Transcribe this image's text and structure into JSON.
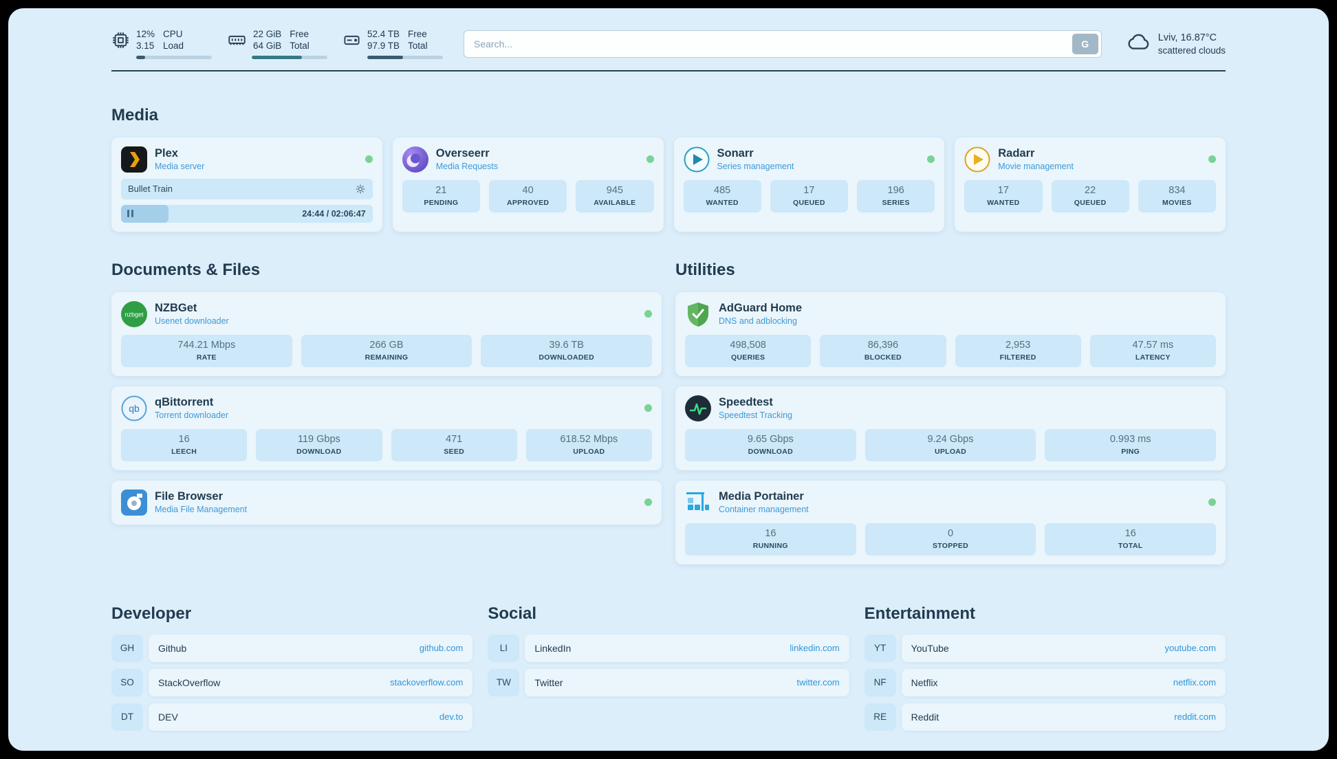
{
  "colors": {
    "status_online": "#79d394",
    "accent_link": "#2f96d8",
    "page_bg": "#dceefa",
    "card_bg": "#eaf5fc",
    "stat_bg": "#cde8f8"
  },
  "topbar": {
    "cpu": {
      "top_value": "12%",
      "bottom_value": "3.15",
      "top_label": "CPU",
      "bottom_label": "Load",
      "progress_pct": 12
    },
    "ram": {
      "top_value": "22 GiB",
      "bottom_value": "64 GiB",
      "top_label": "Free",
      "bottom_label": "Total",
      "progress_pct": 66
    },
    "disk": {
      "top_value": "52.4 TB",
      "bottom_value": "97.9 TB",
      "top_label": "Free",
      "bottom_label": "Total",
      "progress_pct": 47
    },
    "search": {
      "placeholder": "Search...",
      "button_label": "G"
    },
    "weather": {
      "location": "Lviv, 16.87°C",
      "condition": "scattered clouds"
    }
  },
  "media": {
    "title": "Media",
    "plex": {
      "name": "Plex",
      "subtitle": "Media server",
      "now_playing_title": "Bullet Train",
      "time_display": "24:44 / 02:06:47",
      "progress_pct": 19
    },
    "overseerr": {
      "name": "Overseerr",
      "subtitle": "Media Requests",
      "stats": [
        {
          "value": "21",
          "label": "PENDING"
        },
        {
          "value": "40",
          "label": "APPROVED"
        },
        {
          "value": "945",
          "label": "AVAILABLE"
        }
      ]
    },
    "sonarr": {
      "name": "Sonarr",
      "subtitle": "Series management",
      "stats": [
        {
          "value": "485",
          "label": "WANTED"
        },
        {
          "value": "17",
          "label": "QUEUED"
        },
        {
          "value": "196",
          "label": "SERIES"
        }
      ]
    },
    "radarr": {
      "name": "Radarr",
      "subtitle": "Movie management",
      "stats": [
        {
          "value": "17",
          "label": "WANTED"
        },
        {
          "value": "22",
          "label": "QUEUED"
        },
        {
          "value": "834",
          "label": "MOVIES"
        }
      ]
    }
  },
  "documents": {
    "title": "Documents & Files",
    "nzbget": {
      "name": "NZBGet",
      "subtitle": "Usenet downloader",
      "stats": [
        {
          "value": "744.21 Mbps",
          "label": "RATE"
        },
        {
          "value": "266 GB",
          "label": "REMAINING"
        },
        {
          "value": "39.6 TB",
          "label": "DOWNLOADED"
        }
      ]
    },
    "qbittorrent": {
      "name": "qBittorrent",
      "subtitle": "Torrent downloader",
      "stats": [
        {
          "value": "16",
          "label": "LEECH"
        },
        {
          "value": "119 Gbps",
          "label": "DOWNLOAD"
        },
        {
          "value": "471",
          "label": "SEED"
        },
        {
          "value": "618.52 Mbps",
          "label": "UPLOAD"
        }
      ]
    },
    "filebrowser": {
      "name": "File Browser",
      "subtitle": "Media File Management"
    }
  },
  "utilities": {
    "title": "Utilities",
    "adguard": {
      "name": "AdGuard Home",
      "subtitle": "DNS and adblocking",
      "stats": [
        {
          "value": "498,508",
          "label": "QUERIES"
        },
        {
          "value": "86,396",
          "label": "BLOCKED"
        },
        {
          "value": "2,953",
          "label": "FILTERED"
        },
        {
          "value": "47.57 ms",
          "label": "LATENCY"
        }
      ]
    },
    "speedtest": {
      "name": "Speedtest",
      "subtitle": "Speedtest Tracking",
      "stats": [
        {
          "value": "9.65 Gbps",
          "label": "DOWNLOAD"
        },
        {
          "value": "9.24 Gbps",
          "label": "UPLOAD"
        },
        {
          "value": "0.993 ms",
          "label": "PING"
        }
      ]
    },
    "portainer": {
      "name": "Media Portainer",
      "subtitle": "Container management",
      "stats": [
        {
          "value": "16",
          "label": "RUNNING"
        },
        {
          "value": "0",
          "label": "STOPPED"
        },
        {
          "value": "16",
          "label": "TOTAL"
        }
      ]
    }
  },
  "bookmarks": {
    "developer": {
      "title": "Developer",
      "items": [
        {
          "abbr": "GH",
          "name": "Github",
          "url": "github.com"
        },
        {
          "abbr": "SO",
          "name": "StackOverflow",
          "url": "stackoverflow.com"
        },
        {
          "abbr": "DT",
          "name": "DEV",
          "url": "dev.to"
        }
      ]
    },
    "social": {
      "title": "Social",
      "items": [
        {
          "abbr": "LI",
          "name": "LinkedIn",
          "url": "linkedin.com"
        },
        {
          "abbr": "TW",
          "name": "Twitter",
          "url": "twitter.com"
        }
      ]
    },
    "entertainment": {
      "title": "Entertainment",
      "items": [
        {
          "abbr": "YT",
          "name": "YouTube",
          "url": "youtube.com"
        },
        {
          "abbr": "NF",
          "name": "Netflix",
          "url": "netflix.com"
        },
        {
          "abbr": "RE",
          "name": "Reddit",
          "url": "reddit.com"
        }
      ]
    }
  }
}
